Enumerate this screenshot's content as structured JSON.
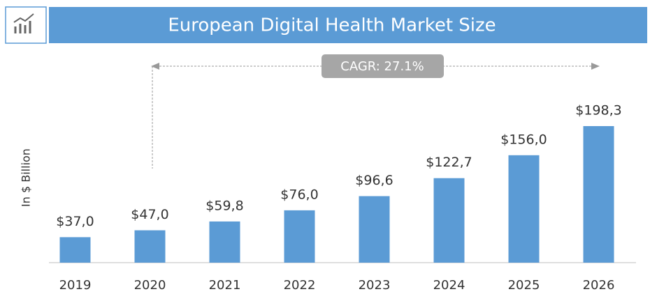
{
  "chart_data": {
    "type": "bar",
    "title": "European Digital Health Market Size",
    "y_label": "In $ Billion",
    "annotation": "CAGR: 27.1%",
    "categories": [
      "2019",
      "2020",
      "2021",
      "2022",
      "2023",
      "2024",
      "2025",
      "2026"
    ],
    "values": [
      37.0,
      47.0,
      59.8,
      76.0,
      96.6,
      122.7,
      156.0,
      198.3
    ],
    "value_labels": [
      "$37,0",
      "$47,0",
      "$59,8",
      "$76,0",
      "$96,6",
      "$122,7",
      "$156,0",
      "$198,3"
    ],
    "color": "#5b9bd5"
  }
}
